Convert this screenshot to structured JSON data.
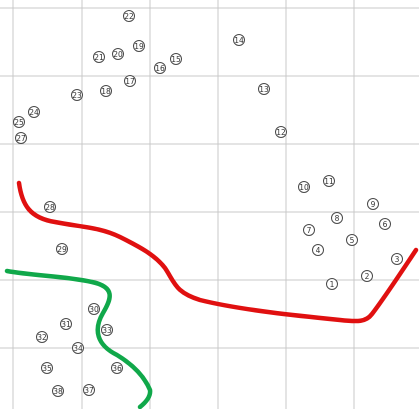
{
  "colors": {
    "background": "#ffffff",
    "grid": "#c9c9c9",
    "red_path": "#e01010",
    "green_path": "#10a84a",
    "marker_stroke": "#4a4a4a",
    "marker_text": "#333333"
  },
  "markers": [
    {
      "label": "1"
    },
    {
      "label": "2"
    },
    {
      "label": "3"
    },
    {
      "label": "4"
    },
    {
      "label": "5"
    },
    {
      "label": "6"
    },
    {
      "label": "7"
    },
    {
      "label": "8"
    },
    {
      "label": "9"
    },
    {
      "label": "10"
    },
    {
      "label": "11"
    },
    {
      "label": "12"
    },
    {
      "label": "13"
    },
    {
      "label": "14"
    },
    {
      "label": "15"
    },
    {
      "label": "16"
    },
    {
      "label": "17"
    },
    {
      "label": "18"
    },
    {
      "label": "19"
    },
    {
      "label": "20"
    },
    {
      "label": "21"
    },
    {
      "label": "22"
    },
    {
      "label": "23"
    },
    {
      "label": "24"
    },
    {
      "label": "25"
    },
    {
      "label": "27"
    },
    {
      "label": "28"
    },
    {
      "label": "29"
    },
    {
      "label": "30"
    },
    {
      "label": "31"
    },
    {
      "label": "32"
    },
    {
      "label": "33"
    },
    {
      "label": "34"
    },
    {
      "label": "35"
    },
    {
      "label": "36"
    },
    {
      "label": "37"
    },
    {
      "label": "38"
    }
  ]
}
